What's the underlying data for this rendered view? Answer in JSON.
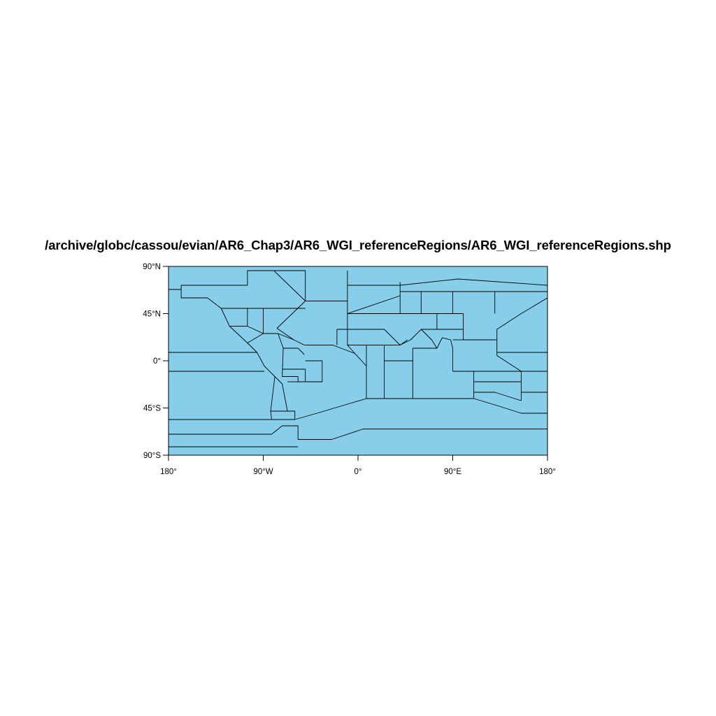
{
  "title": "/archive/globc/cassou/evian/AR6_Chap3/AR6_WGI_referenceRegions/AR6_WGI_referenceRegions.shp",
  "colors": {
    "ocean_fill": "#87ceeb",
    "boundary": "#000000",
    "background": "#ffffff"
  },
  "map": {
    "projection": "cylindrical-equidistant",
    "lon_range": [
      -180,
      180
    ],
    "lat_range": [
      -90,
      90
    ],
    "x_ticks": [
      {
        "value": -180,
        "label": "180°"
      },
      {
        "value": -90,
        "label": "90°W"
      },
      {
        "value": 0,
        "label": "0°"
      },
      {
        "value": 90,
        "label": "90°E"
      },
      {
        "value": 180,
        "label": "180°"
      }
    ],
    "y_ticks": [
      {
        "value": 90,
        "label": "90°N"
      },
      {
        "value": 45,
        "label": "45°N"
      },
      {
        "value": 0,
        "label": "0°"
      },
      {
        "value": -45,
        "label": "45°S"
      },
      {
        "value": -90,
        "label": "90°S"
      }
    ],
    "region_boundaries": [
      [
        [
          -180,
          68
        ],
        [
          -168,
          68
        ]
      ],
      [
        [
          -168,
          72
        ],
        [
          -168,
          60
        ],
        [
          -143,
          60
        ],
        [
          -130,
          50
        ],
        [
          -122,
          33
        ],
        [
          -105,
          17
        ],
        [
          -96,
          8
        ],
        [
          -89,
          -5
        ],
        [
          -79,
          -15
        ],
        [
          -83,
          -48
        ],
        [
          -82,
          -56
        ],
        [
          -60,
          -56
        ],
        [
          -39,
          -50
        ],
        [
          8,
          -36
        ],
        [
          8,
          -5
        ],
        [
          -3,
          7
        ],
        [
          -24,
          15
        ],
        [
          -51,
          15
        ],
        [
          -61,
          20
        ],
        [
          -77,
          31
        ],
        [
          -50,
          57
        ],
        [
          -50,
          86
        ],
        [
          -105,
          86
        ],
        [
          -105,
          72
        ],
        [
          -168,
          72
        ]
      ],
      [
        [
          -130,
          50
        ],
        [
          -50,
          50
        ]
      ],
      [
        [
          -90,
          50
        ],
        [
          -90,
          26
        ]
      ],
      [
        [
          -105,
          50
        ],
        [
          -105,
          33
        ],
        [
          -122,
          33
        ]
      ],
      [
        [
          -105,
          33
        ],
        [
          -90,
          26
        ],
        [
          -76,
          26
        ],
        [
          -61,
          20
        ]
      ],
      [
        [
          -90,
          26
        ],
        [
          -105,
          17
        ]
      ],
      [
        [
          -76,
          26
        ],
        [
          -71,
          12
        ],
        [
          -57,
          12
        ],
        [
          -51,
          6
        ]
      ],
      [
        [
          -180,
          8
        ],
        [
          -96,
          8
        ]
      ],
      [
        [
          -180,
          -10
        ],
        [
          -89,
          -10
        ]
      ],
      [
        [
          -71,
          12
        ],
        [
          -72,
          -15
        ],
        [
          -57,
          -15
        ]
      ],
      [
        [
          -72,
          -8
        ],
        [
          -50,
          -8
        ],
        [
          -50,
          -20
        ],
        [
          -57,
          -20
        ],
        [
          -57,
          -15
        ]
      ],
      [
        [
          -50,
          0
        ],
        [
          -34,
          0
        ],
        [
          -34,
          -20
        ],
        [
          -50,
          -20
        ]
      ],
      [
        [
          -79,
          -15
        ],
        [
          -72,
          -22
        ],
        [
          -67,
          -48
        ],
        [
          -60,
          -48
        ],
        [
          -60,
          -56
        ]
      ],
      [
        [
          -57,
          -20
        ],
        [
          -67,
          -20
        ]
      ],
      [
        [
          -83,
          -48
        ],
        [
          -67,
          -48
        ]
      ],
      [
        [
          -180,
          -56
        ],
        [
          -82,
          -56
        ]
      ],
      [
        [
          -180,
          -70
        ],
        [
          -82,
          -70
        ],
        [
          -72,
          -62
        ],
        [
          -57,
          -62
        ],
        [
          -57,
          -75
        ]
      ],
      [
        [
          -180,
          -82
        ],
        [
          -57,
          -82
        ]
      ],
      [
        [
          -57,
          -75
        ],
        [
          -25,
          -75
        ],
        [
          5,
          -65
        ],
        [
          180,
          -65
        ]
      ],
      [
        [
          -80,
          86
        ],
        [
          -50,
          57
        ]
      ],
      [
        [
          -50,
          57
        ],
        [
          -10,
          57
        ]
      ],
      [
        [
          -10,
          86
        ],
        [
          -10,
          15
        ]
      ],
      [
        [
          -10,
          72
        ],
        [
          40,
          72
        ],
        [
          95,
          78
        ],
        [
          180,
          72
        ]
      ],
      [
        [
          -10,
          45
        ],
        [
          40,
          62
        ]
      ],
      [
        [
          -10,
          15
        ],
        [
          -3,
          7
        ]
      ],
      [
        [
          -20,
          30
        ],
        [
          25,
          30
        ],
        [
          40,
          15
        ],
        [
          50,
          20
        ],
        [
          55,
          25
        ],
        [
          60,
          30
        ]
      ],
      [
        [
          -20,
          30
        ],
        [
          -20,
          15
        ]
      ],
      [
        [
          -10,
          15
        ],
        [
          8,
          15
        ],
        [
          25,
          15
        ],
        [
          40,
          15
        ],
        [
          47,
          20
        ]
      ],
      [
        [
          8,
          15
        ],
        [
          8,
          -5
        ]
      ],
      [
        [
          25,
          15
        ],
        [
          25,
          -36
        ]
      ],
      [
        [
          25,
          0
        ],
        [
          52,
          0
        ]
      ],
      [
        [
          52,
          -36
        ],
        [
          52,
          12
        ]
      ],
      [
        [
          40,
          45
        ],
        [
          40,
          75
        ]
      ],
      [
        [
          40,
          45
        ],
        [
          100,
          45
        ]
      ],
      [
        [
          -10,
          45
        ],
        [
          40,
          45
        ]
      ],
      [
        [
          60,
          66
        ],
        [
          60,
          45
        ]
      ],
      [
        [
          90,
          66
        ],
        [
          90,
          45
        ]
      ],
      [
        [
          130,
          66
        ],
        [
          130,
          45
        ]
      ],
      [
        [
          40,
          66
        ],
        [
          180,
          66
        ]
      ],
      [
        [
          75,
          45
        ],
        [
          75,
          30
        ]
      ],
      [
        [
          60,
          30
        ],
        [
          100,
          30
        ]
      ],
      [
        [
          100,
          45
        ],
        [
          100,
          20
        ],
        [
          132,
          20
        ],
        [
          132,
          30
        ],
        [
          155,
          45
        ],
        [
          180,
          60
        ]
      ],
      [
        [
          60,
          30
        ],
        [
          65,
          25
        ],
        [
          70,
          20
        ],
        [
          75,
          12
        ],
        [
          80,
          22
        ],
        [
          88,
          20
        ],
        [
          90,
          12
        ],
        [
          90,
          -10
        ]
      ],
      [
        [
          90,
          20
        ],
        [
          100,
          20
        ]
      ],
      [
        [
          52,
          12
        ],
        [
          75,
          12
        ]
      ],
      [
        [
          90,
          -10
        ],
        [
          130,
          -10
        ],
        [
          155,
          -10
        ],
        [
          180,
          -10
        ]
      ],
      [
        [
          132,
          20
        ],
        [
          132,
          5
        ],
        [
          155,
          -10
        ]
      ],
      [
        [
          132,
          8
        ],
        [
          180,
          8
        ]
      ],
      [
        [
          8,
          -36
        ],
        [
          110,
          -36
        ],
        [
          130,
          -42
        ],
        [
          155,
          -50
        ],
        [
          180,
          -50
        ]
      ],
      [
        [
          110,
          -10
        ],
        [
          110,
          -36
        ]
      ],
      [
        [
          110,
          -20
        ],
        [
          155,
          -20
        ]
      ],
      [
        [
          110,
          -30
        ],
        [
          130,
          -30
        ],
        [
          155,
          -38
        ]
      ],
      [
        [
          155,
          -10
        ],
        [
          155,
          -38
        ]
      ],
      [
        [
          155,
          -30
        ],
        [
          180,
          -30
        ]
      ]
    ]
  }
}
